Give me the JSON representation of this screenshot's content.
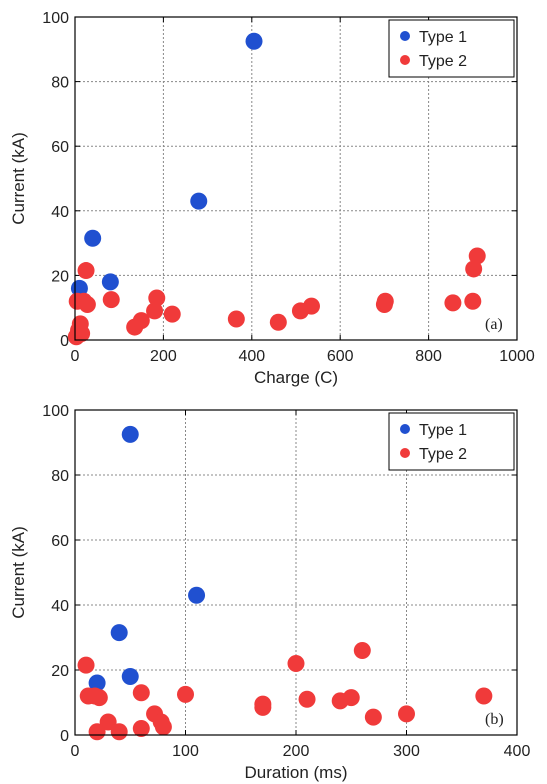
{
  "chart_data": [
    {
      "type": "scatter",
      "panel_label": "(a)",
      "xlabel": "Charge (C)",
      "ylabel": "Current (kA)",
      "xlim": [
        0,
        1000
      ],
      "ylim": [
        0,
        100
      ],
      "xticks": [
        0,
        200,
        400,
        600,
        800,
        1000
      ],
      "yticks": [
        0,
        20,
        40,
        60,
        80,
        100
      ],
      "grid": true,
      "legend_position": "top-right",
      "series": [
        {
          "name": "Type 1",
          "color": "#2050d0",
          "points": [
            [
              10,
              16
            ],
            [
              40,
              31.5
            ],
            [
              80,
              18
            ],
            [
              280,
              43
            ],
            [
              405,
              92.5
            ]
          ]
        },
        {
          "name": "Type 2",
          "color": "#f03a3a",
          "points": [
            [
              3,
              1
            ],
            [
              5,
              12
            ],
            [
              8,
              3
            ],
            [
              12,
              5
            ],
            [
              15,
              2
            ],
            [
              20,
              12
            ],
            [
              25,
              21.5
            ],
            [
              28,
              11
            ],
            [
              82,
              12.5
            ],
            [
              135,
              4
            ],
            [
              150,
              6
            ],
            [
              180,
              9
            ],
            [
              185,
              13
            ],
            [
              220,
              8
            ],
            [
              365,
              6.5
            ],
            [
              460,
              5.5
            ],
            [
              510,
              9
            ],
            [
              535,
              10.5
            ],
            [
              700,
              11
            ],
            [
              702,
              12
            ],
            [
              855,
              11.5
            ],
            [
              900,
              12
            ],
            [
              902,
              22
            ],
            [
              910,
              26
            ]
          ]
        }
      ]
    },
    {
      "type": "scatter",
      "panel_label": "(b)",
      "xlabel": "Duration (ms)",
      "ylabel": "Current (kA)",
      "xlim": [
        0,
        400
      ],
      "ylim": [
        0,
        100
      ],
      "xticks": [
        0,
        100,
        200,
        300,
        400
      ],
      "yticks": [
        0,
        20,
        40,
        60,
        80,
        100
      ],
      "grid": true,
      "legend_position": "top-right",
      "series": [
        {
          "name": "Type 1",
          "color": "#2050d0",
          "points": [
            [
              20,
              16
            ],
            [
              40,
              31.5
            ],
            [
              50,
              18
            ],
            [
              50,
              92.5
            ],
            [
              110,
              43
            ]
          ]
        },
        {
          "name": "Type 2",
          "color": "#f03a3a",
          "points": [
            [
              10,
              21.5
            ],
            [
              12,
              12
            ],
            [
              18,
              12
            ],
            [
              20,
              1
            ],
            [
              22,
              11.5
            ],
            [
              30,
              4
            ],
            [
              40,
              1
            ],
            [
              60,
              2
            ],
            [
              60,
              13
            ],
            [
              72,
              6.5
            ],
            [
              78,
              4
            ],
            [
              80,
              2.5
            ],
            [
              100,
              12.5
            ],
            [
              170,
              8.5
            ],
            [
              170,
              9.5
            ],
            [
              200,
              22
            ],
            [
              210,
              11
            ],
            [
              240,
              10.5
            ],
            [
              250,
              11.5
            ],
            [
              260,
              26
            ],
            [
              270,
              5.5
            ],
            [
              300,
              6.5
            ],
            [
              370,
              12
            ]
          ]
        }
      ]
    }
  ]
}
